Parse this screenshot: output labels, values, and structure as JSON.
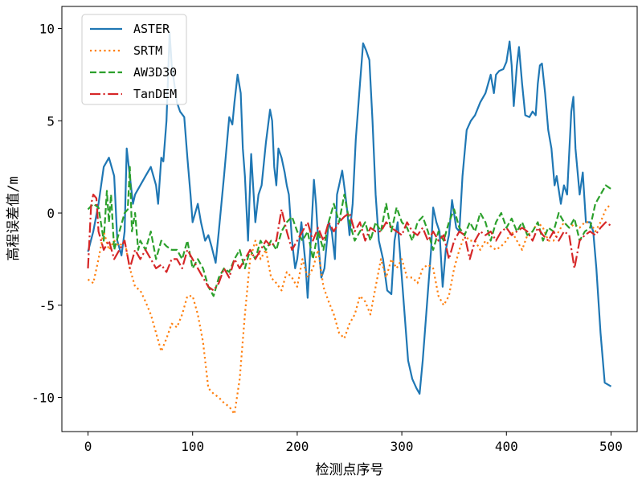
{
  "chart_data": {
    "type": "line",
    "xlabel": "检测点序号",
    "ylabel": "高程误差值/m",
    "xlim": [
      -25,
      525
    ],
    "ylim": [
      -11.85,
      11.2
    ],
    "xticks": [
      0,
      100,
      200,
      300,
      400,
      500
    ],
    "xtick_labels": [
      "0",
      "100",
      "200",
      "300",
      "400",
      "500"
    ],
    "yticks": [
      -10,
      -5,
      0,
      5,
      10
    ],
    "ytick_labels": [
      "-10",
      "-5",
      "0",
      "5",
      "10"
    ],
    "grid": false,
    "legend_position": "top-left",
    "series": [
      {
        "name": "ASTER",
        "color": "#1f77b4",
        "style": "solid",
        "x": [
          0,
          5,
          10,
          15,
          20,
          25,
          28,
          32,
          35,
          37,
          40,
          43,
          45,
          50,
          55,
          60,
          65,
          67,
          70,
          72,
          75,
          78,
          80,
          85,
          88,
          92,
          95,
          98,
          100,
          105,
          108,
          112,
          115,
          118,
          122,
          125,
          130,
          135,
          138,
          140,
          143,
          146,
          148,
          150,
          153,
          156,
          160,
          163,
          166,
          170,
          174,
          176,
          178,
          180,
          182,
          185,
          188,
          190,
          192,
          195,
          198,
          200,
          204,
          208,
          210,
          213,
          216,
          218,
          220,
          223,
          226,
          230,
          233,
          236,
          238,
          240,
          243,
          246,
          248,
          250,
          253,
          256,
          260,
          263,
          266,
          269,
          272,
          275,
          278,
          282,
          286,
          290,
          293,
          296,
          298,
          302,
          306,
          310,
          314,
          317,
          320,
          324,
          328,
          330,
          333,
          336,
          339,
          342,
          345,
          348,
          352,
          355,
          358,
          362,
          366,
          370,
          375,
          380,
          385,
          388,
          390,
          393,
          397,
          400,
          403,
          405,
          407,
          410,
          412,
          415,
          418,
          422,
          425,
          428,
          430,
          432,
          434,
          437,
          440,
          443,
          446,
          448,
          452,
          455,
          458,
          462,
          464,
          466,
          470,
          473,
          476,
          480,
          483,
          486,
          490,
          494,
          500
        ],
        "values": [
          -2.1,
          -1.0,
          0.5,
          2.5,
          3.0,
          2.0,
          -1.5,
          -2.3,
          -1.0,
          3.5,
          2.0,
          0.5,
          1.0,
          1.5,
          2.0,
          2.5,
          1.5,
          0.5,
          3.0,
          2.8,
          5.0,
          9.8,
          8.0,
          6.0,
          5.5,
          5.2,
          3.0,
          1.0,
          -0.5,
          0.5,
          -0.5,
          -1.5,
          -1.2,
          -1.8,
          -2.7,
          -1.0,
          2.0,
          5.2,
          4.8,
          6.0,
          7.5,
          6.5,
          3.5,
          2.0,
          -1.5,
          3.2,
          -0.5,
          1.0,
          1.5,
          3.8,
          5.6,
          5.0,
          2.5,
          1.5,
          3.5,
          3.0,
          2.2,
          1.5,
          1.0,
          -1.5,
          -3.0,
          -2.5,
          -0.5,
          -2.8,
          -4.6,
          -1.5,
          1.8,
          0.5,
          -1.5,
          -3.5,
          -3.0,
          -0.5,
          -1.0,
          -2.5,
          1.0,
          1.5,
          2.3,
          1.0,
          0.0,
          -1.2,
          0.5,
          4.0,
          7.0,
          9.2,
          8.8,
          8.3,
          5.0,
          1.0,
          -1.5,
          -2.5,
          -4.2,
          -4.4,
          -1.5,
          -0.5,
          -2.0,
          -5.0,
          -8.0,
          -9.0,
          -9.5,
          -9.8,
          -8.0,
          -5.0,
          -2.0,
          0.3,
          -0.5,
          -1.0,
          -4.0,
          -2.0,
          -1.2,
          0.7,
          -0.8,
          -1.0,
          2.0,
          4.5,
          5.0,
          5.3,
          6.0,
          6.5,
          7.5,
          6.5,
          7.5,
          7.7,
          7.8,
          8.2,
          9.3,
          8.0,
          5.8,
          8.0,
          9.0,
          7.0,
          5.3,
          5.2,
          5.5,
          5.3,
          7.0,
          8.0,
          8.1,
          6.5,
          4.5,
          3.5,
          1.5,
          2.0,
          0.5,
          1.5,
          1.0,
          5.5,
          6.3,
          3.5,
          1.0,
          2.2,
          -0.5,
          -0.5,
          -1.0,
          -3.0,
          -6.5,
          -9.2,
          -9.4
        ]
      },
      {
        "name": "SRTM",
        "color": "#ff7f0e",
        "style": "dotted",
        "x": [
          0,
          5,
          10,
          15,
          20,
          25,
          30,
          35,
          40,
          45,
          50,
          55,
          60,
          65,
          70,
          75,
          80,
          85,
          90,
          95,
          100,
          105,
          110,
          115,
          120,
          125,
          130,
          135,
          140,
          145,
          150,
          155,
          160,
          165,
          170,
          175,
          180,
          185,
          190,
          195,
          200,
          205,
          210,
          215,
          220,
          225,
          230,
          235,
          240,
          245,
          250,
          255,
          260,
          265,
          270,
          275,
          280,
          285,
          290,
          295,
          300,
          305,
          310,
          315,
          320,
          325,
          330,
          335,
          340,
          345,
          350,
          355,
          360,
          365,
          370,
          375,
          380,
          385,
          390,
          395,
          400,
          405,
          410,
          415,
          420,
          425,
          430,
          435,
          440,
          445,
          450,
          455,
          460,
          465,
          470,
          475,
          480,
          485,
          490,
          495,
          500
        ],
        "values": [
          -3.6,
          -3.8,
          -2.5,
          -1.0,
          -2.0,
          -1.5,
          -1.8,
          -1.5,
          -3.0,
          -4.0,
          -4.2,
          -4.8,
          -5.5,
          -6.5,
          -7.5,
          -6.8,
          -6.0,
          -6.2,
          -5.5,
          -4.5,
          -4.5,
          -5.5,
          -7.0,
          -9.5,
          -9.8,
          -10.0,
          -10.3,
          -10.5,
          -10.9,
          -9.0,
          -5.5,
          -2.5,
          -1.5,
          -2.5,
          -2.0,
          -3.5,
          -3.8,
          -4.2,
          -3.2,
          -3.5,
          -4.0,
          -2.5,
          -3.5,
          -3.0,
          -2.0,
          -4.0,
          -4.8,
          -5.5,
          -6.5,
          -6.8,
          -6.0,
          -5.5,
          -4.5,
          -4.8,
          -5.5,
          -4.0,
          -2.5,
          -3.5,
          -2.5,
          -3.0,
          -2.5,
          -3.5,
          -3.5,
          -3.8,
          -3.0,
          -2.8,
          -3.0,
          -4.5,
          -5.0,
          -4.5,
          -3.0,
          -2.0,
          -1.2,
          -1.5,
          -1.5,
          -2.0,
          -1.5,
          -1.8,
          -2.0,
          -1.8,
          -1.5,
          -1.0,
          -1.5,
          -2.0,
          -1.2,
          -1.0,
          -0.5,
          -0.8,
          -1.5,
          -1.5,
          -1.0,
          -0.5,
          -0.8,
          -0.6,
          -0.8,
          -0.5,
          -0.5,
          -1.0,
          -0.5,
          0.2,
          0.5
        ]
      },
      {
        "name": "AW3D30",
        "color": "#2ca02c",
        "style": "dashed",
        "x": [
          0,
          5,
          10,
          15,
          18,
          20,
          22,
          25,
          30,
          35,
          38,
          40,
          42,
          45,
          48,
          50,
          55,
          60,
          65,
          70,
          75,
          80,
          85,
          90,
          95,
          100,
          105,
          110,
          115,
          120,
          125,
          130,
          135,
          140,
          145,
          150,
          155,
          160,
          165,
          170,
          175,
          180,
          185,
          190,
          195,
          200,
          205,
          210,
          215,
          220,
          225,
          230,
          235,
          240,
          245,
          250,
          255,
          260,
          265,
          270,
          275,
          280,
          285,
          290,
          295,
          300,
          305,
          310,
          315,
          320,
          325,
          330,
          335,
          340,
          345,
          350,
          355,
          360,
          365,
          370,
          375,
          380,
          385,
          390,
          395,
          400,
          405,
          410,
          415,
          420,
          425,
          430,
          435,
          440,
          445,
          450,
          455,
          460,
          465,
          470,
          475,
          480,
          485,
          490,
          495,
          500
        ],
        "values": [
          0.2,
          0.5,
          0.3,
          -1.5,
          1.2,
          -0.5,
          1.0,
          -2.0,
          -1.0,
          0.0,
          0.2,
          2.5,
          -1.0,
          0.0,
          -2.0,
          -1.5,
          -2.0,
          -1.0,
          -2.5,
          -1.5,
          -1.8,
          -2.0,
          -2.0,
          -2.5,
          -1.5,
          -3.0,
          -2.5,
          -3.0,
          -4.0,
          -4.5,
          -3.5,
          -3.0,
          -3.2,
          -2.5,
          -2.0,
          -3.0,
          -2.0,
          -2.5,
          -1.5,
          -2.0,
          -1.5,
          -2.0,
          -1.0,
          -0.5,
          -0.2,
          -1.0,
          -1.5,
          -1.0,
          -2.5,
          -1.0,
          -2.0,
          -0.5,
          0.5,
          -0.5,
          1.0,
          -0.5,
          -1.5,
          -1.0,
          -0.5,
          -1.5,
          -0.5,
          -1.0,
          0.5,
          -1.0,
          0.3,
          -0.5,
          -0.8,
          -1.5,
          -0.5,
          -0.2,
          -1.0,
          -2.0,
          -1.0,
          -1.5,
          -0.5,
          0.2,
          -0.8,
          -1.2,
          -0.5,
          -1.0,
          0.0,
          -0.5,
          -1.5,
          -0.5,
          0.0,
          -0.8,
          -0.3,
          -1.0,
          -0.5,
          -1.2,
          -1.0,
          -0.5,
          -1.5,
          -0.8,
          -1.0,
          0.0,
          -0.5,
          -0.8,
          -0.3,
          -1.5,
          -1.0,
          -0.8,
          0.5,
          1.0,
          1.5,
          1.3
        ]
      },
      {
        "name": "TanDEM",
        "color": "#d62728",
        "style": "dashdot",
        "x": [
          0,
          3,
          5,
          8,
          10,
          15,
          20,
          25,
          30,
          35,
          40,
          45,
          50,
          55,
          60,
          65,
          70,
          75,
          80,
          85,
          90,
          95,
          100,
          105,
          110,
          115,
          120,
          125,
          130,
          135,
          140,
          145,
          150,
          155,
          160,
          165,
          170,
          175,
          180,
          185,
          190,
          195,
          200,
          205,
          210,
          215,
          220,
          225,
          230,
          235,
          240,
          245,
          250,
          255,
          260,
          265,
          270,
          275,
          280,
          285,
          290,
          295,
          300,
          305,
          310,
          315,
          320,
          325,
          330,
          335,
          340,
          345,
          350,
          355,
          360,
          365,
          370,
          375,
          380,
          385,
          390,
          395,
          400,
          405,
          410,
          415,
          420,
          425,
          430,
          435,
          440,
          445,
          450,
          455,
          460,
          465,
          470,
          475,
          480,
          485,
          490,
          495,
          500
        ],
        "values": [
          -3.0,
          0.5,
          1.0,
          0.8,
          -1.0,
          -2.0,
          -1.5,
          -2.5,
          -2.0,
          -1.5,
          -3.0,
          -2.0,
          -2.5,
          -2.0,
          -2.5,
          -3.0,
          -2.8,
          -3.2,
          -2.5,
          -2.5,
          -3.0,
          -2.0,
          -2.5,
          -3.0,
          -3.5,
          -4.0,
          -4.2,
          -3.8,
          -3.0,
          -3.5,
          -2.5,
          -3.0,
          -2.5,
          -2.0,
          -2.5,
          -2.0,
          -1.5,
          -1.8,
          -1.5,
          0.2,
          -1.0,
          -2.0,
          -1.5,
          -1.0,
          -0.5,
          -1.5,
          -0.8,
          -1.5,
          -0.5,
          -1.0,
          -0.5,
          -0.2,
          0.0,
          -1.0,
          -0.5,
          -1.5,
          -0.8,
          -1.0,
          -1.0,
          -0.5,
          -0.8,
          -1.0,
          -1.2,
          -0.5,
          -1.0,
          -1.2,
          -0.8,
          -1.5,
          -1.0,
          -1.5,
          -1.2,
          -2.5,
          -1.5,
          -1.0,
          -1.2,
          -2.5,
          -1.5,
          -1.0,
          -1.2,
          -1.0,
          -1.5,
          -1.0,
          -0.8,
          -1.2,
          -1.0,
          -0.8,
          -1.0,
          -1.5,
          -0.8,
          -1.2,
          -1.5,
          -1.0,
          -1.5,
          -1.0,
          -1.2,
          -3.0,
          -1.5,
          -1.2,
          -1.0,
          -1.2,
          -0.8,
          -0.5,
          -0.7
        ]
      }
    ]
  }
}
